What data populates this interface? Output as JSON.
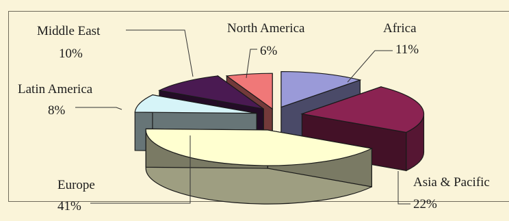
{
  "chart_data": {
    "type": "pie",
    "categories": [
      "Africa",
      "Asia & Pacific",
      "Europe",
      "Latin America",
      "Middle East",
      "North America"
    ],
    "values": [
      11,
      22,
      41,
      8,
      10,
      6
    ],
    "value_labels": [
      "11%",
      "22%",
      "41%",
      "8%",
      "10%",
      "6%"
    ],
    "colors": [
      "#9a9ad8",
      "#8b2352",
      "#ffffd0",
      "#d6f4f8",
      "#4a1a52",
      "#f07878"
    ]
  }
}
